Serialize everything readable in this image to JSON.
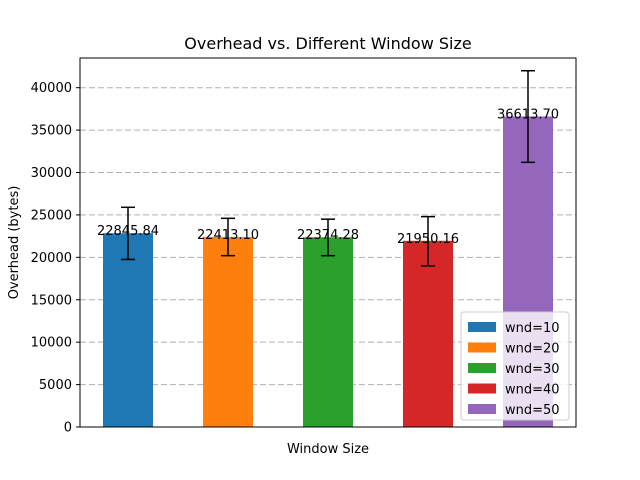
{
  "chart_data": {
    "type": "bar",
    "title": "Overhead vs. Different Window Size",
    "xlabel": "Window Size",
    "ylabel": "Overhead (bytes)",
    "ylim": [
      0,
      43500
    ],
    "yticks": [
      0,
      5000,
      10000,
      15000,
      20000,
      25000,
      30000,
      35000,
      40000
    ],
    "grid": "y-dashed",
    "legend_position": "lower-right",
    "categories": [
      "wnd=10",
      "wnd=20",
      "wnd=30",
      "wnd=40",
      "wnd=50"
    ],
    "values": [
      22845.84,
      22413.1,
      22374.28,
      21950.16,
      36613.7
    ],
    "value_labels": [
      "22845.84",
      "22413.10",
      "22374.28",
      "21950.16",
      "36613.70"
    ],
    "error_low": [
      19750,
      20200,
      20200,
      19000,
      31200
    ],
    "error_high": [
      25900,
      24600,
      24500,
      24800,
      42000
    ],
    "colors": [
      "#1f77b4",
      "#ff7f0e",
      "#2ca02c",
      "#d62728",
      "#9467bd"
    ]
  }
}
